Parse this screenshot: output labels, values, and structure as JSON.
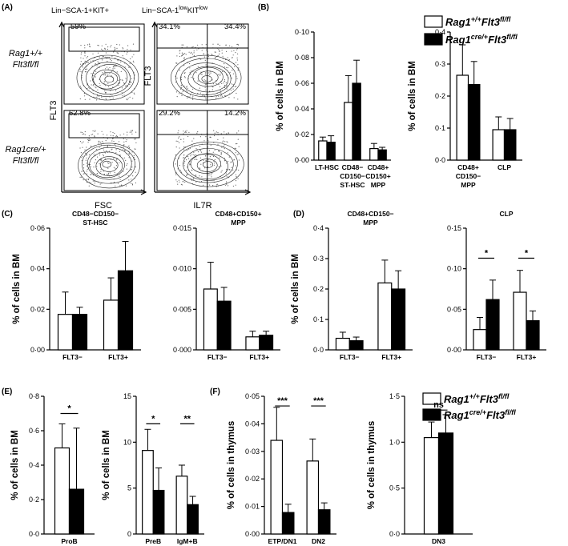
{
  "panels": [
    {
      "label": "(A)",
      "x": 0,
      "y": 0
    },
    {
      "label": "(B)",
      "x": 0,
      "y": 0
    },
    {
      "label": "(C)",
      "x": 0,
      "y": 0
    },
    {
      "label": "(D)",
      "x": 0,
      "y": 0
    },
    {
      "label": "(E)",
      "x": 0,
      "y": 0
    },
    {
      "label": "(F)",
      "x": 0,
      "y": 0
    }
  ],
  "legend": {
    "wt_prefix": "Rag1",
    "wt_sup": "+/+",
    "wt_mid": "Flt3",
    "wt_sup2": "fl/fl",
    "ko_prefix": "Rag1",
    "ko_sup": "cre/+",
    "ko_mid": "Flt3",
    "ko_sup2": "fl/fl"
  },
  "flow": {
    "col1_title": "Lin−SCA-1+KIT+",
    "col2_title_a": "Lin−SCA-1",
    "col2_title_sup": "low",
    "col2_title_b": "KIT",
    "col2_title_sup2": "low",
    "row1_genotype_a": "Rag1+/+",
    "row1_genotype_b": "Flt3fl/fl",
    "row2_genotype_a": "Rag1cre/+",
    "row2_genotype_b": "Flt3fl/fl",
    "y_label": "FLT3",
    "x_label_1": "FSC",
    "x_label_2": "IL7R",
    "pct_r1c1": "59%",
    "pct_r2c1": "62.8%",
    "pct_r1c2_left": "34.1%",
    "pct_r1c2_right": "34.4%",
    "pct_r2c2_left": "29.2%",
    "pct_r2c2_right": "14.2%"
  },
  "chart_data": [
    {
      "id": "B1",
      "type": "bar",
      "title": "",
      "ylabel": "% of cells in BM",
      "ylim": [
        0,
        0.1
      ],
      "yticks": [
        "0·00",
        "0·02",
        "0·04",
        "0·06",
        "0·08",
        "0·10"
      ],
      "categories": [
        [
          "LT-HSC"
        ],
        [
          "CD48−",
          "CD150−",
          "ST-HSC"
        ],
        [
          "CD48+",
          "CD150+",
          "MPP"
        ]
      ],
      "series": [
        {
          "values": [
            0.015,
            0.045,
            0.009
          ],
          "errors": [
            0.003,
            0.021,
            0.004
          ]
        },
        {
          "values": [
            0.014,
            0.06,
            0.008
          ],
          "errors": [
            0.005,
            0.018,
            0.002
          ]
        }
      ],
      "sig": []
    },
    {
      "id": "B2",
      "type": "bar",
      "title": "",
      "ylabel": "% of cells in BM",
      "ylim": [
        0,
        0.4
      ],
      "yticks": [
        "0·0",
        "0·1",
        "0·2",
        "0·3",
        "0·4"
      ],
      "categories": [
        [
          "CD48+",
          "CD150−",
          "MPP"
        ],
        [
          "CLP"
        ]
      ],
      "series": [
        {
          "values": [
            0.265,
            0.095
          ],
          "errors": [
            0.095,
            0.04
          ]
        },
        {
          "values": [
            0.236,
            0.095
          ],
          "errors": [
            0.072,
            0.035
          ]
        }
      ],
      "sig": []
    },
    {
      "id": "C1",
      "type": "bar",
      "title": "CD48−CD150− ST-HSC",
      "ylabel": "% of cells in BM",
      "ylim": [
        0,
        0.06
      ],
      "yticks": [
        "0·00",
        "0·02",
        "0·04",
        "0·06"
      ],
      "categories": [
        [
          "FLT3−"
        ],
        [
          "FLT3+"
        ]
      ],
      "series": [
        {
          "values": [
            0.0175,
            0.0245
          ],
          "errors": [
            0.011,
            0.011
          ]
        },
        {
          "values": [
            0.0175,
            0.039
          ],
          "errors": [
            0.0035,
            0.0145
          ]
        }
      ],
      "sig": []
    },
    {
      "id": "C2",
      "type": "bar",
      "title": "CD48+CD150+ MPP",
      "ylabel": "",
      "ylim": [
        0,
        0.015
      ],
      "yticks": [
        "0·000",
        "0·005",
        "0·010",
        "0·015"
      ],
      "categories": [
        [
          "FLT3−"
        ],
        [
          "FLT3+"
        ]
      ],
      "series": [
        {
          "values": [
            0.0075,
            0.0016
          ],
          "errors": [
            0.0033,
            0.0007
          ]
        },
        {
          "values": [
            0.006,
            0.0018
          ],
          "errors": [
            0.0017,
            0.0005
          ]
        }
      ],
      "sig": []
    },
    {
      "id": "D1",
      "type": "bar",
      "title": "CD48+CD150− MPP",
      "ylabel": "% of cells in BM",
      "ylim": [
        0,
        0.4
      ],
      "yticks": [
        "0·0",
        "0·1",
        "0·2",
        "0·3",
        "0·4"
      ],
      "categories": [
        [
          "FLT3−"
        ],
        [
          "FLT3+"
        ]
      ],
      "series": [
        {
          "values": [
            0.038,
            0.22
          ],
          "errors": [
            0.02,
            0.075
          ]
        },
        {
          "values": [
            0.03,
            0.2
          ],
          "errors": [
            0.012,
            0.06
          ]
        }
      ],
      "sig": []
    },
    {
      "id": "D2",
      "type": "bar",
      "title": "CLP",
      "ylabel": "",
      "ylim": [
        0,
        0.15
      ],
      "yticks": [
        "0·00",
        "0·05",
        "0·10",
        "0·15"
      ],
      "categories": [
        [
          "FLT3−"
        ],
        [
          "FLT3+"
        ]
      ],
      "series": [
        {
          "values": [
            0.025,
            0.071
          ],
          "errors": [
            0.015,
            0.027
          ]
        },
        {
          "values": [
            0.062,
            0.036
          ],
          "errors": [
            0.024,
            0.012
          ]
        }
      ],
      "sig": [
        {
          "cat": 0,
          "text": "*",
          "at": 0.113
        },
        {
          "cat": 1,
          "text": "*",
          "at": 0.113
        }
      ]
    },
    {
      "id": "E1",
      "type": "bar",
      "title": "",
      "ylabel": "% of cells in BM",
      "ylim": [
        0,
        0.8
      ],
      "yticks": [
        "0·0",
        "0·2",
        "0·4",
        "0·6",
        "0·8"
      ],
      "categories": [
        [
          "ProB"
        ]
      ],
      "series": [
        {
          "values": [
            0.5
          ],
          "errors": [
            0.14
          ]
        },
        {
          "values": [
            0.26
          ],
          "errors": [
            0.355
          ]
        }
      ],
      "sig": [
        {
          "cat": 0,
          "text": "*",
          "at": 0.7
        }
      ]
    },
    {
      "id": "E2",
      "type": "bar",
      "title": "",
      "ylabel": "% of cells in BM",
      "ylim": [
        0,
        15
      ],
      "yticks": [
        "0",
        "5",
        "10",
        "15"
      ],
      "categories": [
        [
          "PreB"
        ],
        [
          "IgM+B"
        ]
      ],
      "series": [
        {
          "values": [
            9.1,
            6.3
          ],
          "errors": [
            2.3,
            1.2
          ]
        },
        {
          "values": [
            4.75,
            3.2
          ],
          "errors": [
            2.45,
            0.9
          ]
        }
      ],
      "sig": [
        {
          "cat": 0,
          "text": "*",
          "at": 12.0
        },
        {
          "cat": 1,
          "text": "**",
          "at": 12.0
        }
      ]
    },
    {
      "id": "F1",
      "type": "bar",
      "title": "",
      "ylabel": "% of cells in thymus",
      "ylim": [
        0,
        0.05
      ],
      "yticks": [
        "0·00",
        "0·01",
        "0·02",
        "0·03",
        "0·04",
        "0·05"
      ],
      "categories": [
        [
          "ETP/DN1"
        ],
        [
          "DN2"
        ]
      ],
      "series": [
        {
          "values": [
            0.034,
            0.0265
          ],
          "errors": [
            0.012,
            0.008
          ]
        },
        {
          "values": [
            0.0078,
            0.0088
          ],
          "errors": [
            0.003,
            0.0025
          ]
        }
      ],
      "sig": [
        {
          "cat": 0,
          "text": "***",
          "at": 0.0465
        },
        {
          "cat": 1,
          "text": "***",
          "at": 0.0465
        }
      ]
    },
    {
      "id": "F2",
      "type": "bar",
      "title": "",
      "ylabel": "% of cells in thymus",
      "ylim": [
        0,
        1.5
      ],
      "yticks": [
        "0·0",
        "0·5",
        "1·0",
        "1·5"
      ],
      "categories": [
        [
          "DN3"
        ]
      ],
      "series": [
        {
          "values": [
            1.05
          ],
          "errors": [
            0.17
          ]
        },
        {
          "values": [
            1.1
          ],
          "errors": [
            0.2
          ]
        }
      ],
      "sig": [
        {
          "cat": 0,
          "text": "ns",
          "at": 1.35
        }
      ]
    }
  ]
}
